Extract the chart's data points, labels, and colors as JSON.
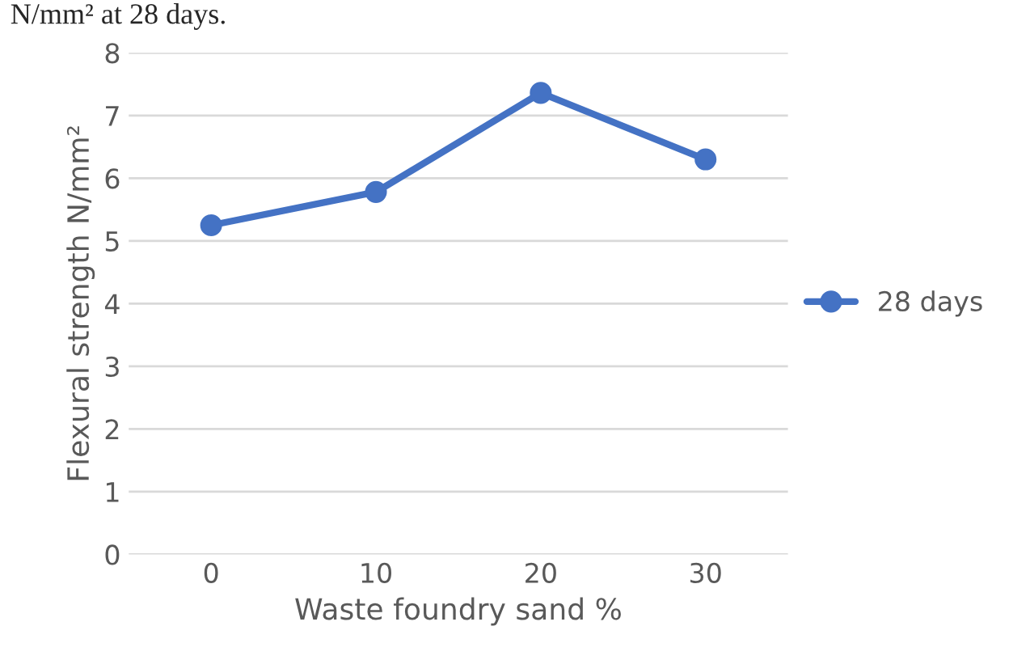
{
  "chart_data": {
    "type": "line",
    "xlabel": "Waste foundry sand %",
    "ylabel": "Flexural strength N/mm²",
    "categories": [
      "0",
      "10",
      "20",
      "30"
    ],
    "series": [
      {
        "name": "28 days",
        "color": "#4472c4",
        "values": [
          5.25,
          5.78,
          7.36,
          6.3
        ]
      }
    ],
    "ylim": [
      0,
      8
    ],
    "yticks": [
      0,
      1,
      2,
      3,
      4,
      5,
      6,
      7,
      8
    ],
    "grid": "y",
    "legend": "right",
    "marker": "circle",
    "annotations": [
      "N/mm² at 28 days."
    ]
  }
}
